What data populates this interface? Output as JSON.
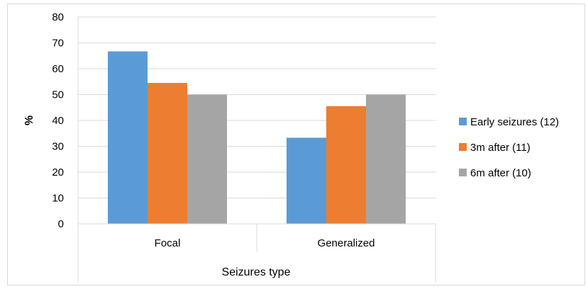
{
  "chart_data": {
    "type": "bar",
    "categories": [
      "Focal",
      "Generalized"
    ],
    "series": [
      {
        "name": "Early seizures (12)",
        "values": [
          66.7,
          33.3
        ],
        "color": "#5B9BD5"
      },
      {
        "name": "3m after (11)",
        "values": [
          54.5,
          45.5
        ],
        "color": "#ED7D31"
      },
      {
        "name": "6m after (10)",
        "values": [
          50.0,
          50.0
        ],
        "color": "#A5A5A5"
      }
    ],
    "title": "",
    "xlabel": "Seizures type",
    "ylabel": "%",
    "ylim": [
      0,
      80
    ],
    "yticks": [
      0,
      10,
      20,
      30,
      40,
      50,
      60,
      70,
      80
    ],
    "grid": true,
    "legend_position": "right"
  }
}
